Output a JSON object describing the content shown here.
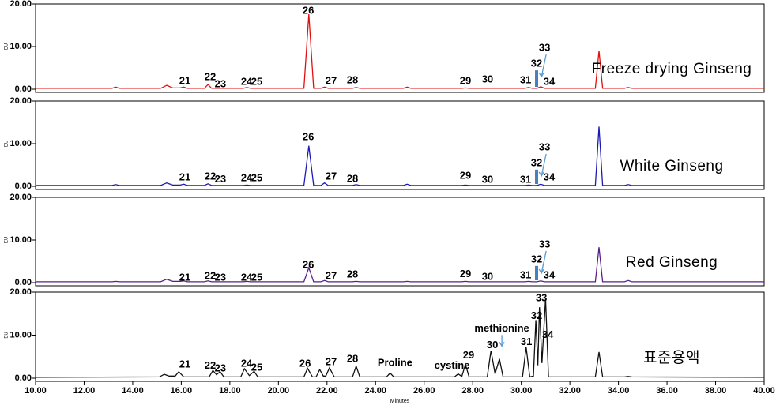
{
  "chart_data": [
    {
      "type": "line",
      "title": "Freeze drying Ginseng",
      "ylabel": "EU",
      "color": "#e01010",
      "xlim": [
        10,
        40
      ],
      "ylim": [
        0,
        20
      ],
      "yticks": [
        {
          "value": 0,
          "label": "0.00"
        },
        {
          "value": 10,
          "label": "10.00"
        },
        {
          "value": 20,
          "label": "20.00"
        }
      ],
      "x": [
        10,
        13.15,
        13.3,
        13.45,
        15.15,
        15.4,
        15.65,
        15.95,
        16.1,
        16.25,
        16.95,
        17.1,
        17.25,
        18.55,
        18.7,
        18.85,
        21.05,
        21.25,
        21.45,
        21.75,
        21.9,
        22.05,
        23.05,
        23.2,
        23.35,
        25.15,
        25.3,
        25.45,
        27.55,
        27.7,
        27.85,
        30.15,
        30.3,
        30.45,
        30.65,
        30.8,
        30.95,
        33.05,
        33.2,
        33.35,
        34.25,
        34.4,
        34.55,
        40
      ],
      "values": [
        0.2,
        0.2,
        0.5,
        0.2,
        0.2,
        0.9,
        0.3,
        0.3,
        0.5,
        0.2,
        0.2,
        1.1,
        0.2,
        0.2,
        0.4,
        0.2,
        0.2,
        17.6,
        0.2,
        0.2,
        0.5,
        0.2,
        0.2,
        0.4,
        0.2,
        0.2,
        0.5,
        0.2,
        0.2,
        0.3,
        0.2,
        0.2,
        0.4,
        0.2,
        0.2,
        0.6,
        0.2,
        0.2,
        9.0,
        0.2,
        0.2,
        0.4,
        0.2,
        0.2
      ],
      "annotations": [
        {
          "text": "21",
          "x": 16.15,
          "y": 1.85
        },
        {
          "text": "22",
          "x": 17.19,
          "y": 2.8
        },
        {
          "text": "23",
          "x": 17.61,
          "y": 1.1
        },
        {
          "text": "24",
          "x": 18.69,
          "y": 1.67
        },
        {
          "text": "25",
          "x": 19.11,
          "y": 1.67
        },
        {
          "text": "26",
          "x": 21.23,
          "y": 18.3
        },
        {
          "text": "27",
          "x": 22.17,
          "y": 1.85
        },
        {
          "text": "28",
          "x": 23.05,
          "y": 2.0
        },
        {
          "text": "29",
          "x": 27.7,
          "y": 1.85
        },
        {
          "text": "30",
          "x": 28.61,
          "y": 2.2
        },
        {
          "text": "31",
          "x": 30.18,
          "y": 2.0
        },
        {
          "text": "32",
          "x": 30.63,
          "y": 5.9,
          "marker": true
        },
        {
          "text": "33",
          "x": 30.96,
          "y": 9.6,
          "arrow": true
        },
        {
          "text": "34",
          "x": 31.15,
          "y": 1.67
        }
      ]
    },
    {
      "type": "line",
      "title": "White Ginseng",
      "ylabel": "EU",
      "color": "#1a1ab4",
      "xlim": [
        10,
        40
      ],
      "ylim": [
        0,
        20
      ],
      "yticks": [
        {
          "value": 0,
          "label": "0.00"
        },
        {
          "value": 10,
          "label": "10.00"
        },
        {
          "value": 20,
          "label": "20.00"
        }
      ],
      "x": [
        10,
        13.15,
        13.3,
        13.45,
        15.15,
        15.4,
        15.65,
        15.95,
        16.1,
        16.25,
        16.95,
        17.1,
        17.25,
        18.55,
        18.7,
        18.85,
        21.05,
        21.25,
        21.45,
        21.75,
        21.9,
        22.05,
        23.05,
        23.2,
        23.35,
        25.15,
        25.3,
        25.45,
        27.55,
        27.7,
        27.85,
        30.15,
        30.3,
        30.45,
        30.65,
        30.8,
        30.95,
        33.05,
        33.2,
        33.35,
        34.25,
        34.4,
        34.55,
        40
      ],
      "values": [
        0.2,
        0.2,
        0.4,
        0.2,
        0.2,
        0.8,
        0.3,
        0.3,
        0.5,
        0.2,
        0.2,
        0.6,
        0.2,
        0.2,
        0.3,
        0.2,
        0.2,
        9.5,
        0.2,
        0.2,
        0.8,
        0.2,
        0.2,
        0.4,
        0.2,
        0.2,
        0.5,
        0.2,
        0.2,
        0.3,
        0.2,
        0.2,
        0.3,
        0.2,
        0.2,
        0.5,
        0.2,
        0.2,
        14.0,
        0.2,
        0.2,
        0.4,
        0.2,
        0.2
      ],
      "annotations": [
        {
          "text": "21",
          "x": 16.15,
          "y": 2.0
        },
        {
          "text": "22",
          "x": 17.19,
          "y": 2.2
        },
        {
          "text": "23",
          "x": 17.61,
          "y": 1.6
        },
        {
          "text": "24",
          "x": 18.69,
          "y": 1.8
        },
        {
          "text": "25",
          "x": 19.11,
          "y": 1.8
        },
        {
          "text": "26",
          "x": 21.23,
          "y": 11.5
        },
        {
          "text": "27",
          "x": 22.17,
          "y": 2.2
        },
        {
          "text": "28",
          "x": 23.05,
          "y": 1.7
        },
        {
          "text": "29",
          "x": 27.7,
          "y": 2.4
        },
        {
          "text": "30",
          "x": 28.61,
          "y": 1.5
        },
        {
          "text": "31",
          "x": 30.18,
          "y": 1.5
        },
        {
          "text": "32",
          "x": 30.63,
          "y": 5.4,
          "marker": true
        },
        {
          "text": "33",
          "x": 30.96,
          "y": 9.1,
          "arrow": true
        },
        {
          "text": "34",
          "x": 31.15,
          "y": 2.0
        }
      ]
    },
    {
      "type": "line",
      "title": "Red Ginseng",
      "ylabel": "EU",
      "color": "#5a1f8a",
      "xlim": [
        10,
        40
      ],
      "ylim": [
        0,
        20
      ],
      "yticks": [
        {
          "value": 0,
          "label": "0.00"
        },
        {
          "value": 10,
          "label": "10.00"
        },
        {
          "value": 20,
          "label": "20.00"
        }
      ],
      "x": [
        10,
        13.15,
        13.3,
        13.45,
        15.15,
        15.4,
        15.65,
        15.95,
        16.1,
        16.25,
        16.95,
        17.1,
        17.25,
        18.55,
        18.7,
        18.85,
        21.05,
        21.25,
        21.45,
        21.75,
        21.9,
        22.05,
        23.05,
        23.2,
        23.35,
        25.15,
        25.3,
        25.45,
        27.55,
        27.7,
        27.85,
        30.15,
        30.3,
        30.45,
        30.65,
        30.8,
        30.95,
        33.05,
        33.2,
        33.35,
        34.25,
        34.4,
        34.55,
        40
      ],
      "values": [
        0.2,
        0.2,
        0.3,
        0.2,
        0.2,
        0.8,
        0.3,
        0.3,
        0.4,
        0.2,
        0.2,
        0.4,
        0.2,
        0.2,
        0.3,
        0.2,
        0.2,
        3.5,
        0.2,
        0.2,
        0.5,
        0.2,
        0.2,
        0.3,
        0.2,
        0.2,
        0.3,
        0.2,
        0.2,
        0.3,
        0.2,
        0.2,
        0.3,
        0.2,
        0.2,
        0.4,
        0.2,
        0.2,
        8.3,
        0.2,
        0.2,
        0.5,
        0.2,
        0.2
      ],
      "annotations": [
        {
          "text": "21",
          "x": 16.15,
          "y": 1.1
        },
        {
          "text": "22",
          "x": 17.19,
          "y": 1.5
        },
        {
          "text": "23",
          "x": 17.61,
          "y": 1.1
        },
        {
          "text": "24",
          "x": 18.69,
          "y": 1.1
        },
        {
          "text": "25",
          "x": 19.11,
          "y": 1.1
        },
        {
          "text": "26",
          "x": 21.23,
          "y": 4.1
        },
        {
          "text": "27",
          "x": 22.17,
          "y": 1.5
        },
        {
          "text": "28",
          "x": 23.05,
          "y": 1.8
        },
        {
          "text": "29",
          "x": 27.7,
          "y": 1.9
        },
        {
          "text": "30",
          "x": 28.61,
          "y": 1.3
        },
        {
          "text": "31",
          "x": 30.18,
          "y": 1.7
        },
        {
          "text": "32",
          "x": 30.63,
          "y": 5.4,
          "marker": true
        },
        {
          "text": "33",
          "x": 30.96,
          "y": 8.9,
          "arrow": true
        },
        {
          "text": "34",
          "x": 31.15,
          "y": 1.7
        }
      ]
    },
    {
      "type": "line",
      "title": "표준용액",
      "ylabel": "EU",
      "xlabel": "Minutes",
      "color": "#111111",
      "xlim": [
        10,
        40
      ],
      "ylim": [
        0,
        20
      ],
      "yticks": [
        {
          "value": 0,
          "label": "0.00"
        },
        {
          "value": 10,
          "label": "10.00"
        },
        {
          "value": 20,
          "label": "20.00"
        }
      ],
      "xticks": [
        {
          "value": 10,
          "label": "10.00"
        },
        {
          "value": 12,
          "label": "12.00"
        },
        {
          "value": 14,
          "label": "14.00"
        },
        {
          "value": 16,
          "label": "16.00"
        },
        {
          "value": 18,
          "label": "18.00"
        },
        {
          "value": 20,
          "label": "20.00"
        },
        {
          "value": 22,
          "label": "22.00"
        },
        {
          "value": 24,
          "label": "24.00"
        },
        {
          "value": 26,
          "label": "26.00"
        },
        {
          "value": 28,
          "label": "28.00"
        },
        {
          "value": 30,
          "label": "30.00"
        },
        {
          "value": 32,
          "label": "32.00"
        },
        {
          "value": 34,
          "label": "34.00"
        },
        {
          "value": 36,
          "label": "36.00"
        },
        {
          "value": 38,
          "label": "38.00"
        },
        {
          "value": 40,
          "label": "40.00"
        }
      ],
      "x": [
        10,
        15.1,
        15.3,
        15.5,
        15.75,
        15.9,
        16.1,
        17.15,
        17.3,
        17.45,
        17.6,
        17.75,
        18.45,
        18.6,
        18.8,
        19.0,
        19.15,
        21.05,
        21.2,
        21.4,
        21.55,
        21.7,
        21.85,
        21.95,
        22.1,
        22.3,
        23.05,
        23.2,
        23.35,
        24.45,
        24.6,
        24.75,
        27.25,
        27.4,
        27.55,
        27.7,
        27.85,
        28.6,
        28.75,
        28.92,
        29.1,
        29.25,
        30.05,
        30.2,
        30.35,
        30.5,
        30.6,
        30.68,
        30.75,
        30.85,
        31.0,
        31.12,
        33.05,
        33.2,
        33.35,
        34.25,
        34.4,
        34.55,
        40
      ],
      "values": [
        0.2,
        0.3,
        0.9,
        0.5,
        0.5,
        1.5,
        0.3,
        0.3,
        1.8,
        0.8,
        1.5,
        0.3,
        0.3,
        2.2,
        0.6,
        1.6,
        0.3,
        0.3,
        2.3,
        0.3,
        0.3,
        2.0,
        0.5,
        0.5,
        2.4,
        0.3,
        0.3,
        2.8,
        0.3,
        0.3,
        1.2,
        0.3,
        0.3,
        1.0,
        0.4,
        3.2,
        0.3,
        0.3,
        6.4,
        1.0,
        4.5,
        0.3,
        0.3,
        7.2,
        0.3,
        0.5,
        13.5,
        3.0,
        16.5,
        3.5,
        18.5,
        0.3,
        0.3,
        6.1,
        0.3,
        0.3,
        0.4,
        0.3,
        0.2
      ],
      "annotations": [
        {
          "text": "21",
          "x": 16.15,
          "y": 3.1
        },
        {
          "text": "22",
          "x": 17.19,
          "y": 2.8
        },
        {
          "text": "23",
          "x": 17.61,
          "y": 2.2
        },
        {
          "text": "24",
          "x": 18.69,
          "y": 3.3
        },
        {
          "text": "25",
          "x": 19.11,
          "y": 2.4
        },
        {
          "text": "26",
          "x": 21.1,
          "y": 3.3
        },
        {
          "text": "27",
          "x": 22.17,
          "y": 3.7
        },
        {
          "text": "28",
          "x": 23.05,
          "y": 4.4
        },
        {
          "text": "Proline",
          "x": 24.8,
          "y": 3.5
        },
        {
          "text": "cystine",
          "x": 27.15,
          "y": 2.8
        },
        {
          "text": "29",
          "x": 27.83,
          "y": 5.2
        },
        {
          "text": "methionine",
          "x": 29.2,
          "y": 11.5,
          "arrow": true
        },
        {
          "text": "30",
          "x": 28.81,
          "y": 7.6
        },
        {
          "text": "31",
          "x": 30.21,
          "y": 8.3
        },
        {
          "text": "32",
          "x": 30.63,
          "y": 14.4
        },
        {
          "text": "33",
          "x": 30.83,
          "y": 18.5
        },
        {
          "text": "34",
          "x": 31.09,
          "y": 10.0
        }
      ]
    }
  ]
}
